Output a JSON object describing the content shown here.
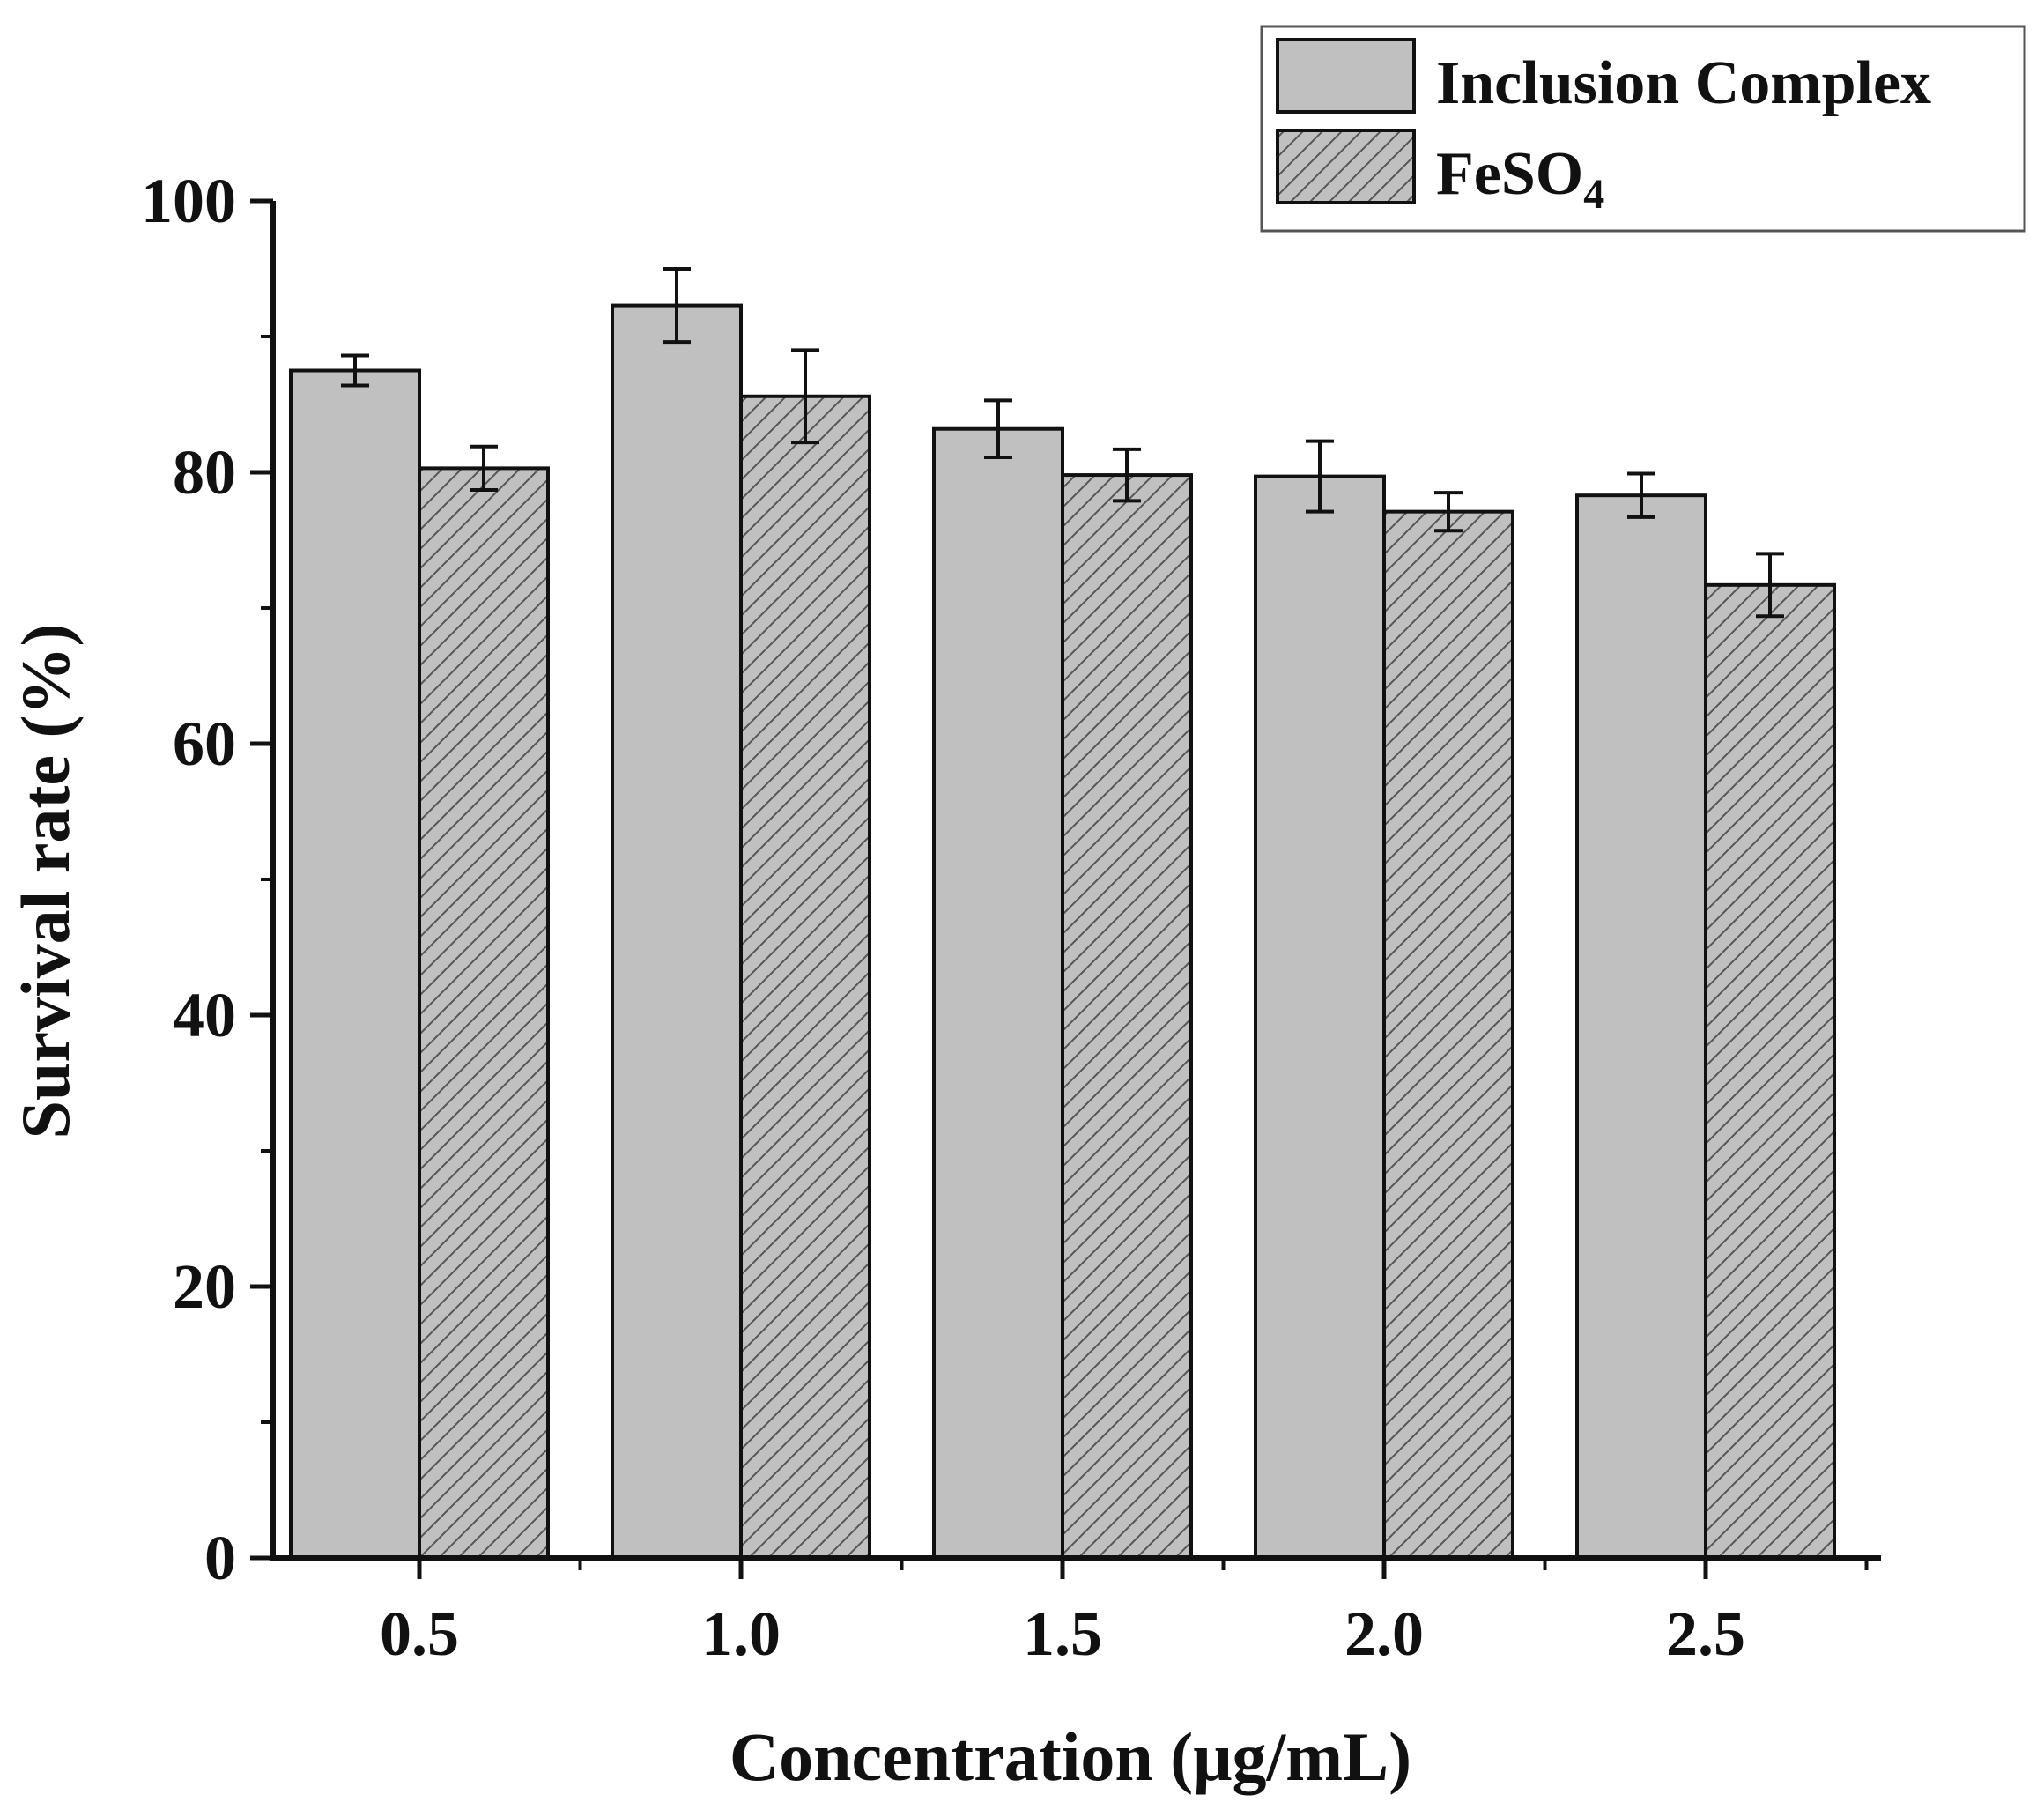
{
  "chart_data": {
    "type": "bar",
    "title": "",
    "xlabel": "Concentration (μg/mL)",
    "ylabel": "Survival rate (%)",
    "categories": [
      "0.5",
      "1.0",
      "1.5",
      "2.0",
      "2.5"
    ],
    "ylim": [
      0,
      100
    ],
    "yticks": [
      0,
      20,
      40,
      60,
      80,
      100
    ],
    "legend_position": "top-right",
    "series": [
      {
        "name": "Inclusion Complex",
        "name_main": "Inclusion Complex",
        "name_sub": "",
        "pattern": "solid",
        "color": "#c0c0c0",
        "values": [
          87.5,
          92.3,
          83.2,
          79.7,
          78.3
        ],
        "errors": [
          1.1,
          2.7,
          2.1,
          2.6,
          1.6
        ]
      },
      {
        "name": "FeSO4",
        "name_main": "FeSO",
        "name_sub": "4",
        "pattern": "hatched",
        "color": "#c0c0c0",
        "values": [
          80.3,
          85.6,
          79.8,
          77.1,
          71.7
        ],
        "errors": [
          1.6,
          3.4,
          1.9,
          1.4,
          2.3
        ]
      }
    ],
    "colors": {
      "bar_fill": "#c0c0c0",
      "bar_stroke": "#111111",
      "hatch": "#555555",
      "axis": "#111111",
      "legend_border": "#555555"
    }
  }
}
